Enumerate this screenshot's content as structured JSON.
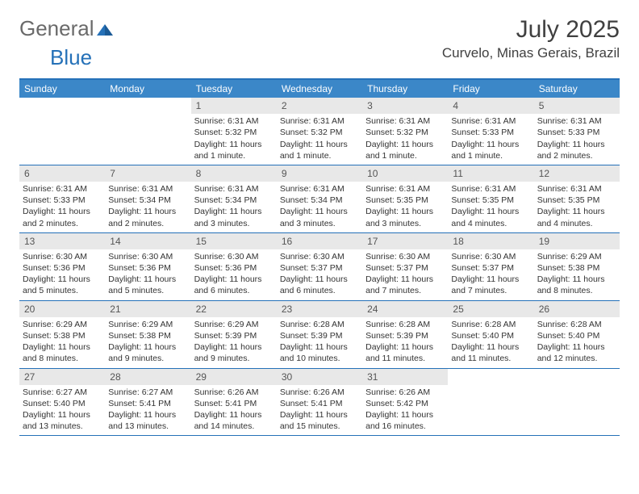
{
  "logo": {
    "text1": "General",
    "text2": "Blue"
  },
  "title": "July 2025",
  "location": "Curvelo, Minas Gerais, Brazil",
  "colors": {
    "header_bar": "#3b87c8",
    "border": "#2571b8",
    "daynum_bg": "#e8e8e8",
    "text": "#333333"
  },
  "weekdays": [
    "Sunday",
    "Monday",
    "Tuesday",
    "Wednesday",
    "Thursday",
    "Friday",
    "Saturday"
  ],
  "weeks": [
    [
      {
        "empty": true
      },
      {
        "empty": true
      },
      {
        "num": "1",
        "sunrise": "Sunrise: 6:31 AM",
        "sunset": "Sunset: 5:32 PM",
        "daylight": "Daylight: 11 hours and 1 minute."
      },
      {
        "num": "2",
        "sunrise": "Sunrise: 6:31 AM",
        "sunset": "Sunset: 5:32 PM",
        "daylight": "Daylight: 11 hours and 1 minute."
      },
      {
        "num": "3",
        "sunrise": "Sunrise: 6:31 AM",
        "sunset": "Sunset: 5:32 PM",
        "daylight": "Daylight: 11 hours and 1 minute."
      },
      {
        "num": "4",
        "sunrise": "Sunrise: 6:31 AM",
        "sunset": "Sunset: 5:33 PM",
        "daylight": "Daylight: 11 hours and 1 minute."
      },
      {
        "num": "5",
        "sunrise": "Sunrise: 6:31 AM",
        "sunset": "Sunset: 5:33 PM",
        "daylight": "Daylight: 11 hours and 2 minutes."
      }
    ],
    [
      {
        "num": "6",
        "sunrise": "Sunrise: 6:31 AM",
        "sunset": "Sunset: 5:33 PM",
        "daylight": "Daylight: 11 hours and 2 minutes."
      },
      {
        "num": "7",
        "sunrise": "Sunrise: 6:31 AM",
        "sunset": "Sunset: 5:34 PM",
        "daylight": "Daylight: 11 hours and 2 minutes."
      },
      {
        "num": "8",
        "sunrise": "Sunrise: 6:31 AM",
        "sunset": "Sunset: 5:34 PM",
        "daylight": "Daylight: 11 hours and 3 minutes."
      },
      {
        "num": "9",
        "sunrise": "Sunrise: 6:31 AM",
        "sunset": "Sunset: 5:34 PM",
        "daylight": "Daylight: 11 hours and 3 minutes."
      },
      {
        "num": "10",
        "sunrise": "Sunrise: 6:31 AM",
        "sunset": "Sunset: 5:35 PM",
        "daylight": "Daylight: 11 hours and 3 minutes."
      },
      {
        "num": "11",
        "sunrise": "Sunrise: 6:31 AM",
        "sunset": "Sunset: 5:35 PM",
        "daylight": "Daylight: 11 hours and 4 minutes."
      },
      {
        "num": "12",
        "sunrise": "Sunrise: 6:31 AM",
        "sunset": "Sunset: 5:35 PM",
        "daylight": "Daylight: 11 hours and 4 minutes."
      }
    ],
    [
      {
        "num": "13",
        "sunrise": "Sunrise: 6:30 AM",
        "sunset": "Sunset: 5:36 PM",
        "daylight": "Daylight: 11 hours and 5 minutes."
      },
      {
        "num": "14",
        "sunrise": "Sunrise: 6:30 AM",
        "sunset": "Sunset: 5:36 PM",
        "daylight": "Daylight: 11 hours and 5 minutes."
      },
      {
        "num": "15",
        "sunrise": "Sunrise: 6:30 AM",
        "sunset": "Sunset: 5:36 PM",
        "daylight": "Daylight: 11 hours and 6 minutes."
      },
      {
        "num": "16",
        "sunrise": "Sunrise: 6:30 AM",
        "sunset": "Sunset: 5:37 PM",
        "daylight": "Daylight: 11 hours and 6 minutes."
      },
      {
        "num": "17",
        "sunrise": "Sunrise: 6:30 AM",
        "sunset": "Sunset: 5:37 PM",
        "daylight": "Daylight: 11 hours and 7 minutes."
      },
      {
        "num": "18",
        "sunrise": "Sunrise: 6:30 AM",
        "sunset": "Sunset: 5:37 PM",
        "daylight": "Daylight: 11 hours and 7 minutes."
      },
      {
        "num": "19",
        "sunrise": "Sunrise: 6:29 AM",
        "sunset": "Sunset: 5:38 PM",
        "daylight": "Daylight: 11 hours and 8 minutes."
      }
    ],
    [
      {
        "num": "20",
        "sunrise": "Sunrise: 6:29 AM",
        "sunset": "Sunset: 5:38 PM",
        "daylight": "Daylight: 11 hours and 8 minutes."
      },
      {
        "num": "21",
        "sunrise": "Sunrise: 6:29 AM",
        "sunset": "Sunset: 5:38 PM",
        "daylight": "Daylight: 11 hours and 9 minutes."
      },
      {
        "num": "22",
        "sunrise": "Sunrise: 6:29 AM",
        "sunset": "Sunset: 5:39 PM",
        "daylight": "Daylight: 11 hours and 9 minutes."
      },
      {
        "num": "23",
        "sunrise": "Sunrise: 6:28 AM",
        "sunset": "Sunset: 5:39 PM",
        "daylight": "Daylight: 11 hours and 10 minutes."
      },
      {
        "num": "24",
        "sunrise": "Sunrise: 6:28 AM",
        "sunset": "Sunset: 5:39 PM",
        "daylight": "Daylight: 11 hours and 11 minutes."
      },
      {
        "num": "25",
        "sunrise": "Sunrise: 6:28 AM",
        "sunset": "Sunset: 5:40 PM",
        "daylight": "Daylight: 11 hours and 11 minutes."
      },
      {
        "num": "26",
        "sunrise": "Sunrise: 6:28 AM",
        "sunset": "Sunset: 5:40 PM",
        "daylight": "Daylight: 11 hours and 12 minutes."
      }
    ],
    [
      {
        "num": "27",
        "sunrise": "Sunrise: 6:27 AM",
        "sunset": "Sunset: 5:40 PM",
        "daylight": "Daylight: 11 hours and 13 minutes."
      },
      {
        "num": "28",
        "sunrise": "Sunrise: 6:27 AM",
        "sunset": "Sunset: 5:41 PM",
        "daylight": "Daylight: 11 hours and 13 minutes."
      },
      {
        "num": "29",
        "sunrise": "Sunrise: 6:26 AM",
        "sunset": "Sunset: 5:41 PM",
        "daylight": "Daylight: 11 hours and 14 minutes."
      },
      {
        "num": "30",
        "sunrise": "Sunrise: 6:26 AM",
        "sunset": "Sunset: 5:41 PM",
        "daylight": "Daylight: 11 hours and 15 minutes."
      },
      {
        "num": "31",
        "sunrise": "Sunrise: 6:26 AM",
        "sunset": "Sunset: 5:42 PM",
        "daylight": "Daylight: 11 hours and 16 minutes."
      },
      {
        "empty": true
      },
      {
        "empty": true
      }
    ]
  ]
}
